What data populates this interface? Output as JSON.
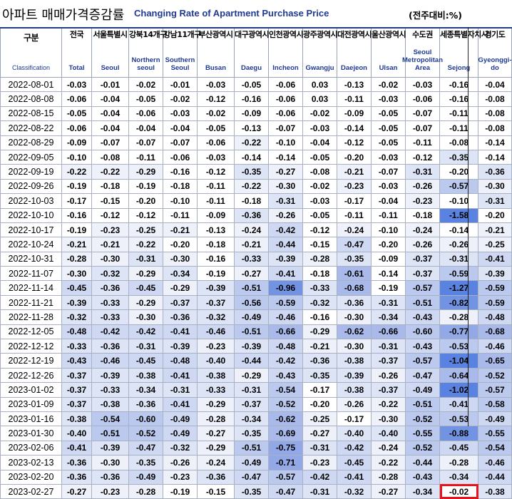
{
  "title": {
    "korean": "아파트 매매가격증감률",
    "english": "Changing Rate of Apartment Purchase Price",
    "unit": "(전주대비:%)"
  },
  "columns": [
    {
      "kr": "구분",
      "en": "Classification"
    },
    {
      "kr": "전국",
      "en": "Total"
    },
    {
      "kr": "서울특별시",
      "en": "Seoul"
    },
    {
      "kr": "강북14개구",
      "en": "Northern seoul"
    },
    {
      "kr": "강남11개구",
      "en": "Southern Seoul"
    },
    {
      "kr": "부산광역시",
      "en": "Busan"
    },
    {
      "kr": "대구광역시",
      "en": "Daegu"
    },
    {
      "kr": "인천광역시",
      "en": "Incheon"
    },
    {
      "kr": "광주광역시",
      "en": "Gwangju"
    },
    {
      "kr": "대전광역시",
      "en": "Daejeon"
    },
    {
      "kr": "울산광역시",
      "en": "Ulsan"
    },
    {
      "kr": "수도권",
      "en": "Seoul Metropolitan Area"
    },
    {
      "kr": "세종특별자치시",
      "en": "Sejong"
    },
    {
      "kr": "경기도",
      "en": "Gyeonggi-do"
    }
  ],
  "highlight_color": "#e8141a",
  "highlighted_cell": {
    "date": "2023-02-27",
    "region": "Sejong",
    "value": "-0.02"
  },
  "rows": [
    {
      "date": "2022-08-01",
      "values": [
        "-0.03",
        "-0.01",
        "-0.02",
        "-0.01",
        "-0.03",
        "-0.05",
        "-0.06",
        "0.03",
        "-0.13",
        "-0.02",
        "-0.03",
        "-0.16",
        "-0.04"
      ]
    },
    {
      "date": "2022-08-08",
      "values": [
        "-0.06",
        "-0.04",
        "-0.05",
        "-0.02",
        "-0.12",
        "-0.16",
        "-0.06",
        "0.03",
        "-0.11",
        "-0.03",
        "-0.06",
        "-0.16",
        "-0.08"
      ]
    },
    {
      "date": "2022-08-15",
      "values": [
        "-0.05",
        "-0.04",
        "-0.06",
        "-0.03",
        "-0.02",
        "-0.09",
        "-0.06",
        "-0.02",
        "-0.09",
        "-0.05",
        "-0.07",
        "-0.11",
        "-0.08"
      ]
    },
    {
      "date": "2022-08-22",
      "values": [
        "-0.06",
        "-0.04",
        "-0.04",
        "-0.04",
        "-0.05",
        "-0.13",
        "-0.07",
        "-0.03",
        "-0.14",
        "-0.05",
        "-0.07",
        "-0.11",
        "-0.08"
      ]
    },
    {
      "date": "2022-08-29",
      "values": [
        "-0.09",
        "-0.07",
        "-0.07",
        "-0.07",
        "-0.06",
        "-0.22",
        "-0.10",
        "-0.04",
        "-0.12",
        "-0.05",
        "-0.11",
        "-0.08",
        "-0.14"
      ]
    },
    {
      "date": "2022-09-05",
      "values": [
        "-0.10",
        "-0.08",
        "-0.11",
        "-0.06",
        "-0.03",
        "-0.14",
        "-0.14",
        "-0.05",
        "-0.20",
        "-0.03",
        "-0.12",
        "-0.35",
        "-0.14"
      ]
    },
    {
      "date": "2022-09-19",
      "values": [
        "-0.22",
        "-0.22",
        "-0.29",
        "-0.16",
        "-0.12",
        "-0.35",
        "-0.27",
        "-0.08",
        "-0.21",
        "-0.07",
        "-0.31",
        "-0.20",
        "-0.36"
      ]
    },
    {
      "date": "2022-09-26",
      "values": [
        "-0.19",
        "-0.18",
        "-0.19",
        "-0.18",
        "-0.11",
        "-0.22",
        "-0.30",
        "-0.02",
        "-0.23",
        "-0.03",
        "-0.26",
        "-0.57",
        "-0.30"
      ]
    },
    {
      "date": "2022-10-03",
      "values": [
        "-0.17",
        "-0.15",
        "-0.20",
        "-0.10",
        "-0.11",
        "-0.18",
        "-0.31",
        "-0.03",
        "-0.17",
        "-0.04",
        "-0.23",
        "-0.10",
        "-0.31"
      ]
    },
    {
      "date": "2022-10-10",
      "values": [
        "-0.16",
        "-0.12",
        "-0.12",
        "-0.11",
        "-0.09",
        "-0.36",
        "-0.26",
        "-0.05",
        "-0.11",
        "-0.11",
        "-0.18",
        "-1.58",
        "-0.20"
      ]
    },
    {
      "date": "2022-10-17",
      "values": [
        "-0.19",
        "-0.23",
        "-0.25",
        "-0.21",
        "-0.13",
        "-0.24",
        "-0.42",
        "-0.12",
        "-0.24",
        "-0.10",
        "-0.24",
        "-0.14",
        "-0.21"
      ]
    },
    {
      "date": "2022-10-24",
      "values": [
        "-0.21",
        "-0.21",
        "-0.22",
        "-0.20",
        "-0.18",
        "-0.21",
        "-0.44",
        "-0.15",
        "-0.47",
        "-0.20",
        "-0.26",
        "-0.26",
        "-0.25"
      ]
    },
    {
      "date": "2022-10-31",
      "values": [
        "-0.28",
        "-0.30",
        "-0.31",
        "-0.30",
        "-0.16",
        "-0.33",
        "-0.39",
        "-0.28",
        "-0.35",
        "-0.09",
        "-0.37",
        "-0.31",
        "-0.41"
      ]
    },
    {
      "date": "2022-11-07",
      "values": [
        "-0.30",
        "-0.32",
        "-0.29",
        "-0.34",
        "-0.19",
        "-0.27",
        "-0.41",
        "-0.18",
        "-0.61",
        "-0.14",
        "-0.37",
        "-0.59",
        "-0.39"
      ]
    },
    {
      "date": "2022-11-14",
      "values": [
        "-0.45",
        "-0.36",
        "-0.45",
        "-0.29",
        "-0.39",
        "-0.51",
        "-0.96",
        "-0.33",
        "-0.68",
        "-0.19",
        "-0.57",
        "-1.27",
        "-0.59"
      ]
    },
    {
      "date": "2022-11-21",
      "values": [
        "-0.39",
        "-0.33",
        "-0.29",
        "-0.37",
        "-0.37",
        "-0.56",
        "-0.59",
        "-0.32",
        "-0.36",
        "-0.31",
        "-0.51",
        "-0.82",
        "-0.59"
      ]
    },
    {
      "date": "2022-11-28",
      "values": [
        "-0.32",
        "-0.33",
        "-0.30",
        "-0.36",
        "-0.32",
        "-0.49",
        "-0.46",
        "-0.16",
        "-0.30",
        "-0.34",
        "-0.43",
        "-0.28",
        "-0.48"
      ]
    },
    {
      "date": "2022-12-05",
      "values": [
        "-0.48",
        "-0.42",
        "-0.42",
        "-0.41",
        "-0.46",
        "-0.51",
        "-0.66",
        "-0.29",
        "-0.62",
        "-0.66",
        "-0.60",
        "-0.77",
        "-0.68"
      ]
    },
    {
      "date": "2022-12-12",
      "values": [
        "-0.33",
        "-0.36",
        "-0.31",
        "-0.39",
        "-0.23",
        "-0.39",
        "-0.48",
        "-0.21",
        "-0.30",
        "-0.31",
        "-0.43",
        "-0.53",
        "-0.46"
      ]
    },
    {
      "date": "2022-12-19",
      "values": [
        "-0.43",
        "-0.46",
        "-0.45",
        "-0.48",
        "-0.40",
        "-0.44",
        "-0.42",
        "-0.36",
        "-0.38",
        "-0.37",
        "-0.57",
        "-1.04",
        "-0.65"
      ]
    },
    {
      "date": "2022-12-26",
      "values": [
        "-0.37",
        "-0.39",
        "-0.38",
        "-0.41",
        "-0.38",
        "-0.29",
        "-0.43",
        "-0.35",
        "-0.39",
        "-0.26",
        "-0.47",
        "-0.64",
        "-0.52"
      ]
    },
    {
      "date": "2023-01-02",
      "values": [
        "-0.37",
        "-0.33",
        "-0.34",
        "-0.31",
        "-0.33",
        "-0.31",
        "-0.54",
        "-0.17",
        "-0.38",
        "-0.37",
        "-0.49",
        "-1.02",
        "-0.57"
      ]
    },
    {
      "date": "2023-01-09",
      "values": [
        "-0.37",
        "-0.38",
        "-0.36",
        "-0.41",
        "-0.29",
        "-0.37",
        "-0.52",
        "-0.20",
        "-0.26",
        "-0.22",
        "-0.51",
        "-0.41",
        "-0.58"
      ]
    },
    {
      "date": "2023-01-16",
      "values": [
        "-0.38",
        "-0.54",
        "-0.60",
        "-0.49",
        "-0.28",
        "-0.34",
        "-0.62",
        "-0.25",
        "-0.17",
        "-0.30",
        "-0.52",
        "-0.53",
        "-0.49"
      ]
    },
    {
      "date": "2023-01-30",
      "values": [
        "-0.40",
        "-0.51",
        "-0.52",
        "-0.49",
        "-0.27",
        "-0.35",
        "-0.69",
        "-0.27",
        "-0.40",
        "-0.40",
        "-0.55",
        "-0.88",
        "-0.55"
      ]
    },
    {
      "date": "2023-02-06",
      "values": [
        "-0.41",
        "-0.39",
        "-0.47",
        "-0.32",
        "-0.29",
        "-0.51",
        "-0.75",
        "-0.31",
        "-0.42",
        "-0.24",
        "-0.52",
        "-0.45",
        "-0.54"
      ]
    },
    {
      "date": "2023-02-13",
      "values": [
        "-0.36",
        "-0.30",
        "-0.35",
        "-0.26",
        "-0.24",
        "-0.49",
        "-0.71",
        "-0.23",
        "-0.45",
        "-0.22",
        "-0.44",
        "-0.28",
        "-0.46"
      ]
    },
    {
      "date": "2023-02-20",
      "values": [
        "-0.36",
        "-0.36",
        "-0.49",
        "-0.23",
        "-0.36",
        "-0.47",
        "-0.57",
        "-0.42",
        "-0.41",
        "-0.28",
        "-0.43",
        "-0.34",
        "-0.44"
      ]
    },
    {
      "date": "2023-02-27",
      "values": [
        "-0.27",
        "-0.23",
        "-0.28",
        "-0.19",
        "-0.15",
        "-0.35",
        "-0.47",
        "-0.31",
        "-0.32",
        "-0.27",
        "-0.34",
        "-0.02",
        "-0.38"
      ]
    }
  ]
}
